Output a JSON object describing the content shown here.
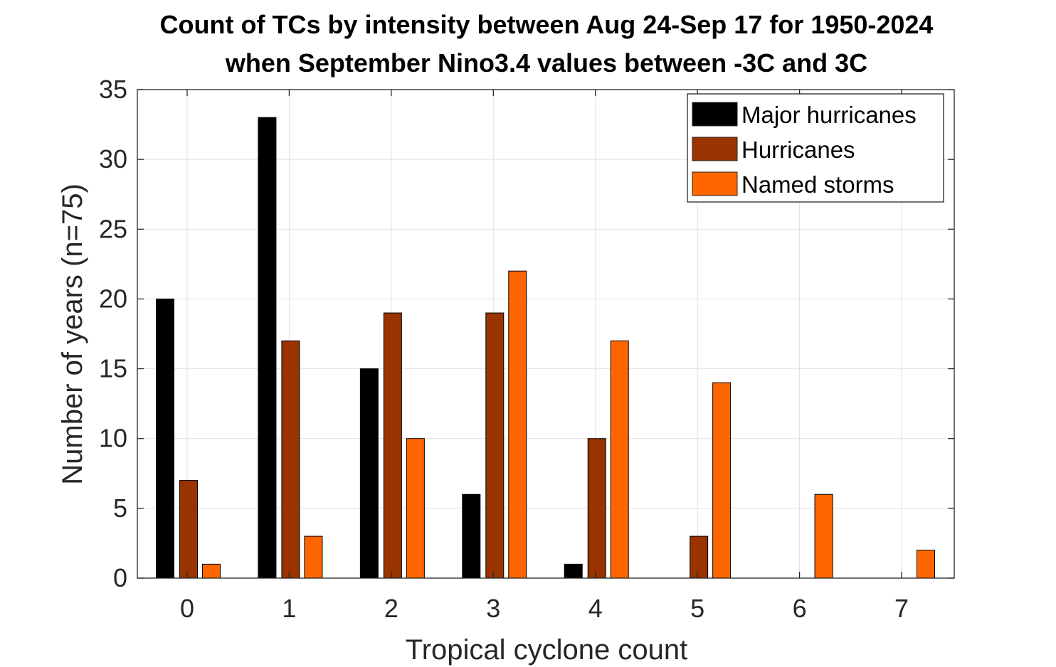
{
  "chart_data": {
    "type": "bar",
    "title_lines": [
      "Count of TCs by intensity between Aug 24-Sep 17 for 1950-2024",
      "when September Nino3.4 values between -3C and 3C"
    ],
    "xlabel": "Tropical cyclone count",
    "ylabel": "Number of years (n=75)",
    "categories": [
      "0",
      "1",
      "2",
      "3",
      "4",
      "5",
      "6",
      "7"
    ],
    "y_ticks": [
      "0",
      "5",
      "10",
      "15",
      "20",
      "25",
      "30",
      "35"
    ],
    "ylim": [
      0,
      35
    ],
    "grid": true,
    "legend_position": "top-right",
    "series": [
      {
        "name": "Major hurricanes",
        "color": "#000000",
        "values": [
          20,
          33,
          15,
          6,
          1,
          0,
          0,
          0
        ]
      },
      {
        "name": "Hurricanes",
        "color": "#993300",
        "values": [
          7,
          17,
          19,
          19,
          10,
          3,
          0,
          0
        ]
      },
      {
        "name": "Named storms",
        "color": "#FF6600",
        "values": [
          1,
          3,
          10,
          22,
          17,
          14,
          6,
          2
        ]
      }
    ]
  }
}
